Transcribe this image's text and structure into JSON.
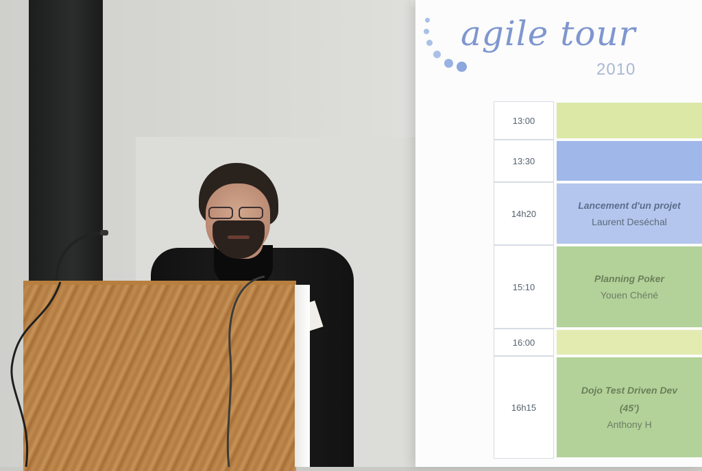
{
  "slide": {
    "brand": "agile tour",
    "year": "2010",
    "schedule": [
      {
        "time": "13:00",
        "color": "#dbe8a6",
        "title": "",
        "speaker": ""
      },
      {
        "time": "13:30",
        "color": "#9fb7e9",
        "title": "",
        "speaker": ""
      },
      {
        "time": "14h20",
        "color": "#b4c6ee",
        "title": "Lancement d'un projet",
        "speaker": "Laurent Deséchal"
      },
      {
        "time": "15:10",
        "color": "#b3d29a",
        "title": "Planning Poker",
        "speaker": "Youen Chéné"
      },
      {
        "time": "16:00",
        "color": "#e3ebb0",
        "title": "",
        "speaker": ""
      },
      {
        "time": "16h15",
        "color": "#b3d29a",
        "title": "Dojo Test Driven Dev",
        "title2": "(45')",
        "speaker": "Anthony H"
      }
    ]
  },
  "icons": {
    "logo": "dotted-arc-logo-icon",
    "microphone": "microphone-icon",
    "badge": "name-badge-icon"
  }
}
